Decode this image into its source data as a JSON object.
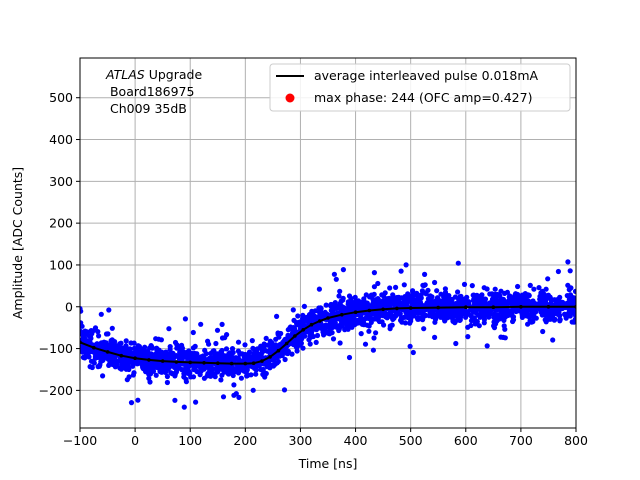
{
  "chart_data": {
    "type": "scatter",
    "title": "",
    "xlabel": "Time [ns]",
    "ylabel": "Amplitude [ADC Counts]",
    "xlim": [
      -100,
      800
    ],
    "ylim": [
      -290,
      595
    ],
    "xticks": [
      -100,
      0,
      100,
      200,
      300,
      400,
      500,
      600,
      700,
      800
    ],
    "xtick_labels": [
      "−100",
      "0",
      "100",
      "200",
      "300",
      "400",
      "500",
      "600",
      "700",
      "800"
    ],
    "yticks": [
      -200,
      -100,
      0,
      100,
      200,
      300,
      400,
      500
    ],
    "ytick_labels": [
      "−200",
      "−100",
      "0",
      "100",
      "200",
      "300",
      "400",
      "500"
    ],
    "grid": true,
    "annotation": {
      "atlas": "ATLAS",
      "upgrade": " Upgrade",
      "board": " Board186975",
      "channel": " Ch009 35dB"
    },
    "legend": {
      "placement": "top-right",
      "entries": [
        {
          "label": "average interleaved pulse 0.018mA",
          "marker": "line",
          "color": "#000000"
        },
        {
          "label": "max phase: 244 (OFC amp=0.427)",
          "marker": "circle",
          "color": "#ff0000"
        }
      ]
    },
    "series": [
      {
        "name": "samples",
        "kind": "scatter",
        "color": "#0000ff",
        "note": "dense noisy samples around the average pulse, spread about ±35 ADC counts with outliers to ±110",
        "spread": 32,
        "outlier_spread": 110
      },
      {
        "name": "average interleaved pulse 0.018mA",
        "kind": "line",
        "color": "#000000",
        "x": [
          -100,
          -75,
          -50,
          -25,
          0,
          25,
          50,
          75,
          100,
          125,
          150,
          175,
          200,
          215,
          230,
          245,
          260,
          275,
          290,
          305,
          320,
          335,
          350,
          375,
          400,
          425,
          450,
          475,
          500,
          550,
          600,
          650,
          700,
          750,
          800
        ],
        "y": [
          -85,
          -98,
          -108,
          -117,
          -123,
          -127,
          -130,
          -132,
          -133,
          -134,
          -135,
          -136,
          -136,
          -135,
          -130,
          -120,
          -105,
          -88,
          -70,
          -55,
          -43,
          -34,
          -27,
          -19,
          -13,
          -9,
          -6,
          -4,
          -3,
          -2,
          -1,
          -1,
          0,
          0,
          0
        ]
      }
    ]
  }
}
